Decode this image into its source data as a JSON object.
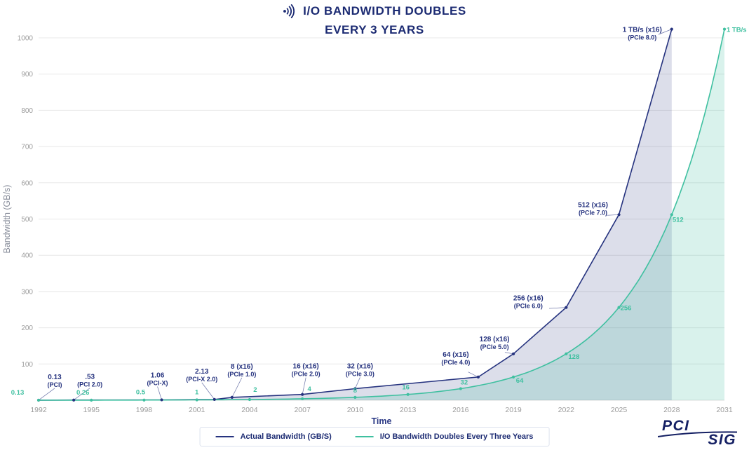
{
  "header": {
    "title_line1": "I/O BANDWIDTH DOUBLES",
    "title_line2": "EVERY 3 YEARS"
  },
  "colors": {
    "navy": "#26337f",
    "teal": "#3fc0a0",
    "title": "#1b2a72",
    "grid": "#e8e8e8",
    "tick_text": "#9b9b9b",
    "axis_title_x": "#2c3a86",
    "axis_title_y": "#8a8f9c"
  },
  "chart_data": {
    "type": "line",
    "title": "I/O BANDWIDTH DOUBLES EVERY 3 YEARS",
    "xlabel": "Time",
    "ylabel": "Bandwidth (GB/s)",
    "xlim": [
      1992,
      2031
    ],
    "ylim": [
      0,
      1000
    ],
    "x_ticks": [
      1992,
      1995,
      1998,
      2001,
      2004,
      2007,
      2010,
      2013,
      2016,
      2019,
      2022,
      2025,
      2028,
      2031
    ],
    "y_ticks": [
      100,
      200,
      300,
      400,
      500,
      600,
      700,
      800,
      900,
      1000
    ],
    "grid": "horizontal",
    "legend_position": "bottom",
    "series": [
      {
        "name": "Actual Bandwidth (GB/S)",
        "color": "#26337f",
        "fill_opacity": 0.16,
        "interpolate": "linear",
        "points": [
          {
            "x": 1992,
            "y": 0.13,
            "label": "0.13",
            "sublabel": "(PCI)",
            "dx": 23,
            "dy": -30,
            "leader": true
          },
          {
            "x": 1994,
            "y": 0.53,
            "label": ".53",
            "sublabel": "(PCI 2.0)",
            "dx": 23,
            "dy": -30,
            "leader": true
          },
          {
            "x": 1999,
            "y": 1.06,
            "label": "1.06",
            "sublabel": "(PCI-X)",
            "dx": -6,
            "dy": -32,
            "leader": true
          },
          {
            "x": 2002,
            "y": 2.13,
            "label": "2.13",
            "sublabel": "(PCI-X 2.0)",
            "dx": -18,
            "dy": -37,
            "leader": true
          },
          {
            "x": 2003,
            "y": 8,
            "label": "8 (x16)",
            "sublabel": "(PCIe 1.0)",
            "dx": 14,
            "dy": -41,
            "leader": true
          },
          {
            "x": 2007,
            "y": 16,
            "label": "16 (x16)",
            "sublabel": "(PCIe 2.0)",
            "dx": 5,
            "dy": -37,
            "leader": true
          },
          {
            "x": 2010,
            "y": 32,
            "label": "32 (x16)",
            "sublabel": "(PCIe 3.0)",
            "dx": 7,
            "dy": -29,
            "leader": true
          },
          {
            "x": 2017,
            "y": 64,
            "label": "64 (x16)",
            "sublabel": "(PCIe 4.0)",
            "dx": -32,
            "dy": -29,
            "leader": true
          },
          {
            "x": 2019,
            "y": 128,
            "label": "128 (x16)",
            "sublabel": "(PCIe 5.0)",
            "dx": -27,
            "dy": -18,
            "leader": true
          },
          {
            "x": 2022,
            "y": 256,
            "label": "256 (x16)",
            "sublabel": "(PCIe 6.0)",
            "dx": -54,
            "dy": -10,
            "leader": true
          },
          {
            "x": 2025,
            "y": 512,
            "label": "512 (x16)",
            "sublabel": "(PCIe 7.0)",
            "dx": -37,
            "dy": -11,
            "leader": true
          },
          {
            "x": 2028,
            "y": 1024,
            "label": "1 TB/s (x16)",
            "sublabel": "(PCIe 8.0)",
            "dx": -42,
            "dy": 4,
            "leader": true
          }
        ]
      },
      {
        "name": "I/O Bandwidth Doubles Every Three Years",
        "color": "#3fc0a0",
        "fill_opacity": 0.2,
        "interpolate": "geometric",
        "points": [
          {
            "x": 1992,
            "y": 0.13,
            "label": "0.13",
            "dx": -30,
            "dy": -8
          },
          {
            "x": 1995,
            "y": 0.26,
            "label": "0.26",
            "dx": -12,
            "dy": -8
          },
          {
            "x": 1998,
            "y": 0.5,
            "label": "0.5",
            "dx": -5,
            "dy": -8
          },
          {
            "x": 2001,
            "y": 1,
            "label": "1",
            "dx": 0,
            "dy": -8
          },
          {
            "x": 2004,
            "y": 2,
            "label": "2",
            "dx": 8,
            "dy": -11
          },
          {
            "x": 2007,
            "y": 4,
            "label": "4",
            "dx": 10,
            "dy": -11
          },
          {
            "x": 2010,
            "y": 8,
            "label": "8",
            "dx": 0,
            "dy": -7
          },
          {
            "x": 2013,
            "y": 16,
            "label": "16",
            "dx": -3,
            "dy": -7
          },
          {
            "x": 2016,
            "y": 32,
            "label": "32",
            "dx": 5,
            "dy": -6
          },
          {
            "x": 2019,
            "y": 64,
            "label": "64",
            "dx": 9,
            "dy": 8
          },
          {
            "x": 2022,
            "y": 128,
            "label": "128",
            "dx": 11,
            "dy": 7
          },
          {
            "x": 2025,
            "y": 256,
            "label": "256",
            "dx": 10,
            "dy": 4
          },
          {
            "x": 2028,
            "y": 512,
            "label": "512",
            "dx": 9,
            "dy": 10
          },
          {
            "x": 2031,
            "y": 1024,
            "label": "1 TB/s",
            "dx": 3,
            "dy": 4,
            "anchor": "start"
          }
        ]
      }
    ]
  },
  "legend": {
    "items": [
      {
        "label": "Actual Bandwidth (GB/S)"
      },
      {
        "label": "I/O Bandwidth Doubles Every Three Years"
      }
    ]
  },
  "logo": {
    "line1": "PCI",
    "line2": "SIG"
  }
}
